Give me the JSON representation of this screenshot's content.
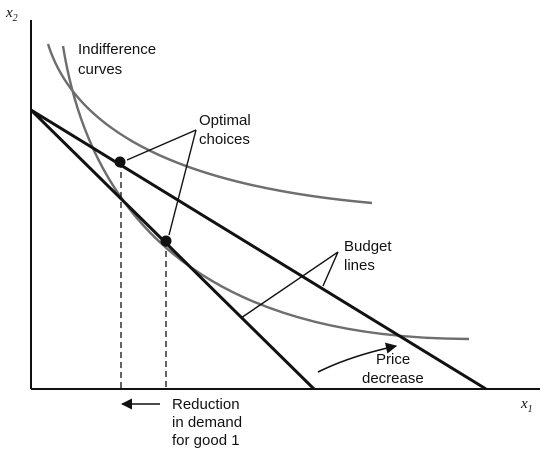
{
  "axes": {
    "x_label": "x",
    "x_subscript": "1",
    "y_label": "x",
    "y_subscript": "2"
  },
  "labels": {
    "indifference_curves": [
      "Indifference",
      "curves"
    ],
    "optimal_choices": [
      "Optimal",
      "choices"
    ],
    "budget_lines": [
      "Budget",
      "lines"
    ],
    "price_decrease": [
      "Price",
      "decrease"
    ],
    "reduction": [
      "Reduction",
      "in demand",
      "for good 1"
    ]
  },
  "colors": {
    "axis": "#111111",
    "budget_line": "#111111",
    "indifference_curve": "#6e6e6e",
    "point": "#111111"
  }
}
